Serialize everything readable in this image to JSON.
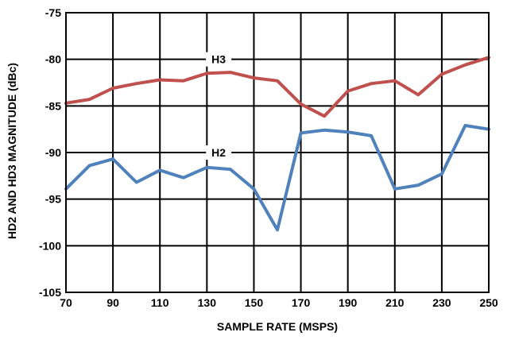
{
  "chart_data": {
    "type": "line",
    "xlabel": "SAMPLE RATE (MSPS)",
    "ylabel": "HD2 AND HD3 MAGNITUDE (dBc)",
    "xlim": [
      70,
      250
    ],
    "ylim": [
      -105,
      -75
    ],
    "xticks": [
      "70",
      "90",
      "110",
      "130",
      "150",
      "170",
      "190",
      "210",
      "230",
      "250"
    ],
    "yticks": [
      "-75",
      "-80",
      "-85",
      "-90",
      "-95",
      "-100",
      "-105"
    ],
    "grid": true,
    "x": [
      70,
      80,
      90,
      100,
      110,
      120,
      130,
      140,
      150,
      160,
      170,
      180,
      190,
      200,
      210,
      220,
      230,
      240,
      250
    ],
    "series": [
      {
        "name": "H3",
        "color": "#c0504d",
        "values": [
          -84.7,
          -84.3,
          -83.1,
          -82.6,
          -82.2,
          -82.3,
          -81.5,
          -81.4,
          -82.0,
          -82.3,
          -84.8,
          -86.1,
          -83.4,
          -82.6,
          -82.3,
          -83.8,
          -81.6,
          -80.6,
          -79.8
        ]
      },
      {
        "name": "H2",
        "color": "#4f81bd",
        "values": [
          -93.9,
          -91.4,
          -90.7,
          -93.2,
          -91.9,
          -92.7,
          -91.6,
          -91.8,
          -93.9,
          -98.3,
          -87.9,
          -87.6,
          -87.8,
          -88.2,
          -93.9,
          -93.5,
          -92.3,
          -87.1,
          -87.5
        ]
      }
    ]
  }
}
